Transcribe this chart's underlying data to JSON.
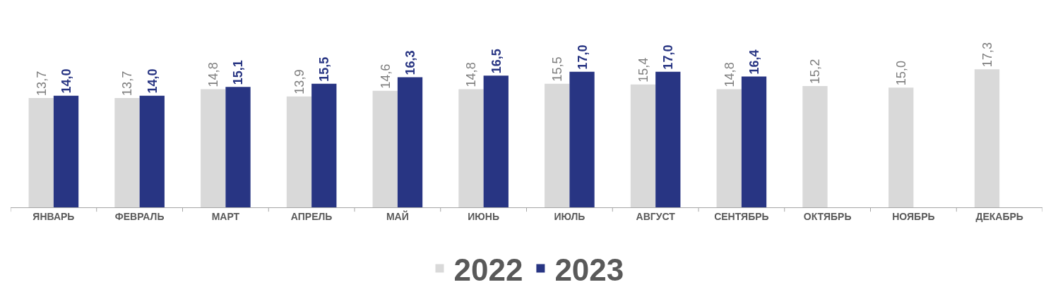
{
  "chart_data": {
    "type": "bar",
    "categories": [
      "ЯНВАРЬ",
      "ФЕВРАЛЬ",
      "МАРТ",
      "АПРЕЛЬ",
      "МАЙ",
      "ИЮНЬ",
      "ИЮЛЬ",
      "АВГУСТ",
      "СЕНТЯБРЬ",
      "ОКТЯБРЬ",
      "НОЯБРЬ",
      "ДЕКАБРЬ"
    ],
    "series": [
      {
        "name": "2022",
        "color": "#d9d9d9",
        "values": [
          13.7,
          13.7,
          14.8,
          13.9,
          14.6,
          14.8,
          15.5,
          15.4,
          14.8,
          15.2,
          15.0,
          17.3
        ],
        "value_labels": [
          "13,7",
          "13,7",
          "14,8",
          "13,9",
          "14,6",
          "14,8",
          "15,5",
          "15,4",
          "14,8",
          "15,2",
          "15,0",
          "17,3"
        ]
      },
      {
        "name": "2023",
        "color": "#283583",
        "values": [
          14.0,
          14.0,
          15.1,
          15.5,
          16.3,
          16.5,
          17.0,
          17.0,
          16.4,
          null,
          null,
          null
        ],
        "value_labels": [
          "14,0",
          "14,0",
          "15,1",
          "15,5",
          "16,3",
          "16,5",
          "17,0",
          "17,0",
          "16,4",
          null,
          null,
          null
        ]
      }
    ],
    "legend": "bottom"
  }
}
